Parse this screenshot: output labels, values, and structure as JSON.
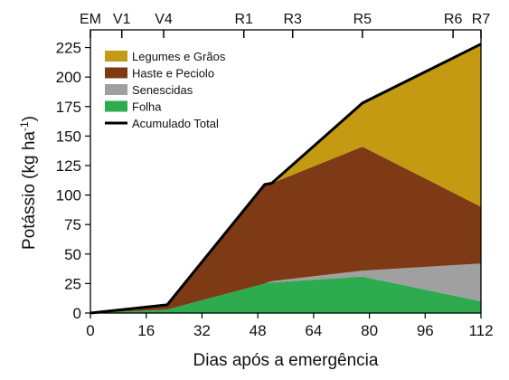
{
  "chart_data": {
    "type": "area",
    "stacked": true,
    "xlabel": "Dias após a emergência",
    "ylabel_main": "Potássio (kg ha",
    "ylabel_sup": "-1",
    "ylabel_end": ")",
    "xlim": [
      0,
      112
    ],
    "ylim": [
      0,
      240
    ],
    "x_ticks": [
      0,
      16,
      32,
      48,
      64,
      80,
      96,
      112
    ],
    "x_tick_labels": [
      "0",
      "16",
      "32",
      "48",
      "64",
      "80",
      "96",
      "112"
    ],
    "y_ticks": [
      0,
      25,
      50,
      75,
      100,
      125,
      150,
      175,
      200,
      225
    ],
    "y_tick_labels": [
      "0",
      "25",
      "50",
      "75",
      "100",
      "125",
      "150",
      "175",
      "200",
      "225"
    ],
    "stages": [
      {
        "label": "EM",
        "x": 0
      },
      {
        "label": "V1",
        "x": 9
      },
      {
        "label": "V4",
        "x": 21
      },
      {
        "label": "R1",
        "x": 44
      },
      {
        "label": "R3",
        "x": 58
      },
      {
        "label": "R5",
        "x": 78
      },
      {
        "label": "R6",
        "x": 104
      },
      {
        "label": "R7",
        "x": 112
      }
    ],
    "x": [
      0,
      22,
      50,
      52,
      78,
      112
    ],
    "series": [
      {
        "name": "Folha",
        "color": "#2eaa4f",
        "values": [
          0,
          3,
          25,
          26,
          31,
          10
        ]
      },
      {
        "name": "Senescidas",
        "color": "#a0a0a0",
        "values": [
          0,
          0,
          0,
          1,
          5,
          32
        ]
      },
      {
        "name": "Haste e Peciolo",
        "color": "#7d3a14",
        "values": [
          0,
          4,
          84,
          83,
          105,
          48
        ]
      },
      {
        "name": "Legumes e Grãos",
        "color": "#c49a12",
        "values": [
          0,
          0,
          0,
          0,
          37,
          138
        ]
      }
    ],
    "total": {
      "name": "Acumulado Total",
      "color": "#000000",
      "values": [
        0,
        7,
        109,
        110,
        178,
        228
      ]
    },
    "legend": {
      "placement": "top-left",
      "entries": [
        {
          "label": "Legumes e Grãos",
          "color": "#c49a12",
          "kind": "patch"
        },
        {
          "label": "Haste e Peciolo",
          "color": "#7d3a14",
          "kind": "patch"
        },
        {
          "label": "Senescidas",
          "color": "#a0a0a0",
          "kind": "patch"
        },
        {
          "label": "Folha",
          "color": "#2eaa4f",
          "kind": "patch"
        },
        {
          "label": "Acumulado Total",
          "color": "#000000",
          "kind": "line"
        }
      ]
    },
    "grid": false
  }
}
